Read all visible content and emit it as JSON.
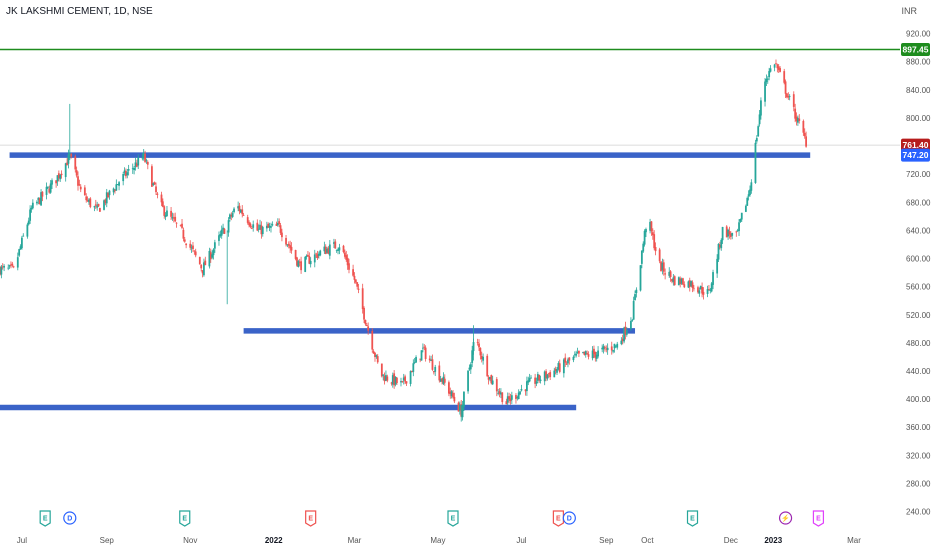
{
  "header": {
    "title": "JK LAKSHMI CEMENT, 1D, NSE",
    "currency": "INR"
  },
  "colors": {
    "up": "#26a69a",
    "down": "#ef5350",
    "support": "#3a63c8",
    "high_line": "#1e8c1e",
    "last_tag": "#b71c1c",
    "support_tag": "#2962ff"
  },
  "chart_data": {
    "type": "candlestick",
    "title": "JK LAKSHMI CEMENT, 1D, NSE",
    "ylabel": "INR",
    "ylim": [
      228,
      928
    ],
    "y_ticks": [
      920,
      880,
      840,
      800,
      720,
      680,
      640,
      600,
      560,
      520,
      480,
      440,
      400,
      360,
      320,
      280,
      240
    ],
    "x_ticks": [
      {
        "label": "Jul",
        "date": "2021-07-01",
        "bold": false
      },
      {
        "label": "Sep",
        "date": "2021-09-01",
        "bold": false
      },
      {
        "label": "Nov",
        "date": "2021-11-01",
        "bold": false
      },
      {
        "label": "2022",
        "date": "2022-01-01",
        "bold": true
      },
      {
        "label": "Mar",
        "date": "2022-03-01",
        "bold": false
      },
      {
        "label": "May",
        "date": "2022-05-01",
        "bold": false
      },
      {
        "label": "Jul",
        "date": "2022-07-01",
        "bold": false
      },
      {
        "label": "Sep",
        "date": "2022-09-01",
        "bold": false
      },
      {
        "label": "Oct",
        "date": "2022-10-01",
        "bold": false
      },
      {
        "label": "Dec",
        "date": "2022-12-01",
        "bold": false
      },
      {
        "label": "2023",
        "date": "2023-01-01",
        "bold": true
      },
      {
        "label": "Mar",
        "date": "2023-03-01",
        "bold": false
      }
    ],
    "x_start": "2021-06-15",
    "x_end": "2023-03-20",
    "price_labels": [
      {
        "label": "897.45",
        "value": 897.45,
        "kind": "high"
      },
      {
        "label": "761.40",
        "value": 761.4,
        "kind": "last"
      },
      {
        "label": "747.20",
        "value": 747.2,
        "kind": "support"
      }
    ],
    "levels": [
      {
        "name": "resistance-747",
        "value": 747.2,
        "from": "2021-06-22",
        "to": "2023-01-28"
      },
      {
        "name": "mid-level",
        "value": 497,
        "from": "2021-12-10",
        "to": "2022-09-22"
      },
      {
        "name": "base-level",
        "value": 388,
        "from": "2021-06-15",
        "to": "2022-08-10"
      }
    ],
    "events": [
      {
        "label": "E",
        "type": "earnings-past",
        "date": "2021-07-18"
      },
      {
        "label": "D",
        "type": "dividend",
        "date": "2021-08-05"
      },
      {
        "label": "E",
        "type": "earnings-past",
        "date": "2021-10-28"
      },
      {
        "label": "E",
        "type": "earnings-miss",
        "date": "2022-01-28"
      },
      {
        "label": "E",
        "type": "earnings-past",
        "date": "2022-05-12"
      },
      {
        "label": "E",
        "type": "earnings-miss",
        "date": "2022-07-28"
      },
      {
        "label": "D",
        "type": "dividend",
        "date": "2022-08-05"
      },
      {
        "label": "E",
        "type": "earnings-past",
        "date": "2022-11-03"
      },
      {
        "label": "⚡",
        "type": "split",
        "date": "2023-01-10"
      },
      {
        "label": "E",
        "type": "earnings-future",
        "date": "2023-02-03"
      }
    ],
    "price_path": [
      [
        "2021-06-15",
        585
      ],
      [
        "2021-06-25",
        583
      ],
      [
        "2021-07-08",
        670
      ],
      [
        "2021-07-25",
        710
      ],
      [
        "2021-08-05",
        745
      ],
      [
        "2021-08-14",
        690
      ],
      [
        "2021-08-25",
        668
      ],
      [
        "2021-09-10",
        710
      ],
      [
        "2021-09-28",
        745
      ],
      [
        "2021-10-10",
        675
      ],
      [
        "2021-10-25",
        640
      ],
      [
        "2021-11-10",
        585
      ],
      [
        "2021-11-22",
        628
      ],
      [
        "2021-12-05",
        675
      ],
      [
        "2021-12-20",
        640
      ],
      [
        "2022-01-05",
        645
      ],
      [
        "2022-01-20",
        590
      ],
      [
        "2022-02-05",
        610
      ],
      [
        "2022-02-18",
        620
      ],
      [
        "2022-03-01",
        570
      ],
      [
        "2022-03-20",
        435
      ],
      [
        "2022-04-05",
        420
      ],
      [
        "2022-04-20",
        470
      ],
      [
        "2022-05-05",
        425
      ],
      [
        "2022-05-18",
        382
      ],
      [
        "2022-05-28",
        488
      ],
      [
        "2022-06-08",
        430
      ],
      [
        "2022-06-20",
        395
      ],
      [
        "2022-07-05",
        420
      ],
      [
        "2022-07-25",
        440
      ],
      [
        "2022-08-10",
        460
      ],
      [
        "2022-08-25",
        465
      ],
      [
        "2022-09-10",
        478
      ],
      [
        "2022-09-20",
        520
      ],
      [
        "2022-10-01",
        660
      ],
      [
        "2022-10-10",
        590
      ],
      [
        "2022-10-20",
        570
      ],
      [
        "2022-11-01",
        565
      ],
      [
        "2022-11-15",
        550
      ],
      [
        "2022-11-25",
        640
      ],
      [
        "2022-12-05",
        630
      ],
      [
        "2022-12-15",
        700
      ],
      [
        "2022-12-25",
        850
      ],
      [
        "2023-01-02",
        880
      ],
      [
        "2023-01-10",
        840
      ],
      [
        "2023-01-20",
        790
      ],
      [
        "2023-01-26",
        761.4
      ]
    ],
    "grid": false,
    "legend": "none"
  }
}
